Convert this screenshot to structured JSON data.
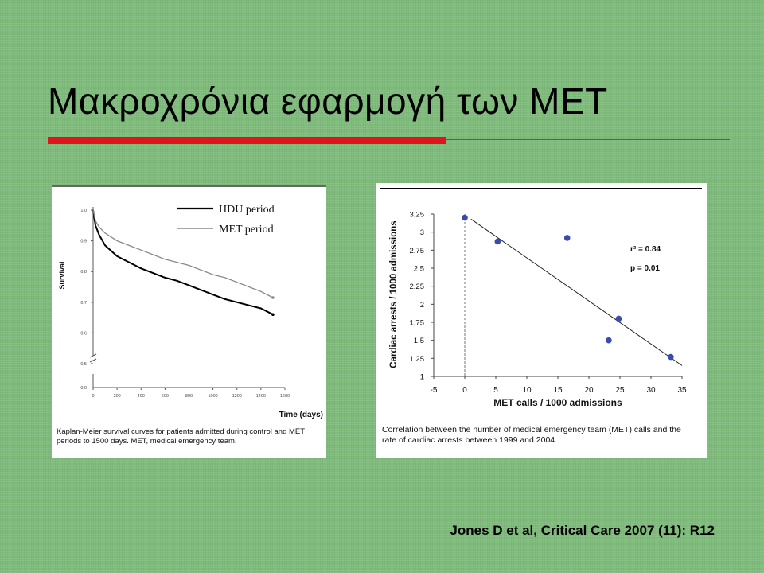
{
  "slide": {
    "title": "Μακροχρόνια εφαρμογή των ΜΕΤ",
    "citation": "Jones D et al, Critical Care 2007 (11): R12",
    "colors": {
      "background": "#7fbc7c",
      "accent": "#e0141c"
    }
  },
  "chart_data": [
    {
      "type": "line",
      "title": "",
      "xlabel": "Time (days)",
      "ylabel": "Survival",
      "xlim": [
        0,
        1600
      ],
      "ylim": [
        0.5,
        1.0
      ],
      "x_ticks": [
        "0",
        "200",
        "400",
        "600",
        "800",
        "1000",
        "1200",
        "1400",
        "1600"
      ],
      "y_ticks": [
        "1.0",
        "0.9",
        "0.8",
        "0.7",
        "0.6",
        "0.5"
      ],
      "y_break_tick": "0.0",
      "legend_position": "top-right",
      "series": [
        {
          "name": "HDU period",
          "color": "#000000",
          "x": [
            0,
            20,
            50,
            100,
            200,
            300,
            400,
            500,
            600,
            700,
            800,
            900,
            1000,
            1100,
            1200,
            1300,
            1400,
            1500
          ],
          "y": [
            1.0,
            0.95,
            0.92,
            0.885,
            0.85,
            0.83,
            0.81,
            0.795,
            0.78,
            0.77,
            0.755,
            0.74,
            0.725,
            0.71,
            0.7,
            0.69,
            0.68,
            0.66
          ]
        },
        {
          "name": "MET period",
          "color": "#888888",
          "x": [
            0,
            20,
            50,
            100,
            200,
            300,
            400,
            500,
            600,
            700,
            800,
            900,
            1000,
            1100,
            1200,
            1300,
            1400,
            1500
          ],
          "y": [
            1.0,
            0.965,
            0.945,
            0.925,
            0.9,
            0.885,
            0.87,
            0.855,
            0.84,
            0.83,
            0.82,
            0.805,
            0.79,
            0.78,
            0.765,
            0.75,
            0.735,
            0.715
          ]
        }
      ],
      "caption": "Kaplan-Meier survival curves for patients admitted during control and MET periods to 1500 days. MET, medical emergency team."
    },
    {
      "type": "scatter",
      "title": "",
      "xlabel": "MET calls / 1000 admissions",
      "ylabel": "Cardiac arrests / 1000 admissions",
      "xlim": [
        -5,
        35
      ],
      "ylim": [
        1,
        3.25
      ],
      "x_ticks": [
        "-5",
        "0",
        "5",
        "10",
        "15",
        "20",
        "25",
        "30",
        "35"
      ],
      "y_ticks": [
        "1",
        "1.25",
        "1.5",
        "1.75",
        "2",
        "2.25",
        "2.5",
        "2.75",
        "3",
        "3.25"
      ],
      "points": [
        {
          "x": 0,
          "y": 3.2
        },
        {
          "x": 5.3,
          "y": 2.87
        },
        {
          "x": 16.5,
          "y": 2.92
        },
        {
          "x": 23.2,
          "y": 1.5
        },
        {
          "x": 24.8,
          "y": 1.8
        },
        {
          "x": 33.2,
          "y": 1.27
        }
      ],
      "trendline": {
        "x": [
          1,
          35
        ],
        "y": [
          3.18,
          1.15
        ]
      },
      "vertical_reference_x": 0,
      "annotations": [
        "r² = 0.84",
        "p = 0.01"
      ],
      "caption": "Correlation between the number of medical emergency team (MET) calls and the rate of cardiac arrests between 1999 and 2004."
    }
  ]
}
